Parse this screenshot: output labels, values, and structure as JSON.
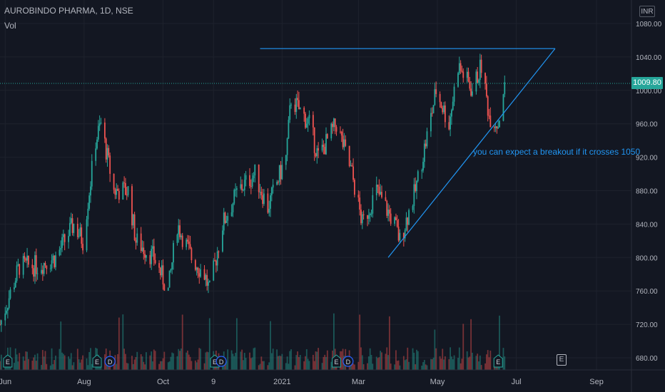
{
  "header": {
    "title": "AUROBINDO PHARMA, 1D, NSE",
    "volume_label": "Vol",
    "currency": "INR"
  },
  "current_price": {
    "value": 1009.8,
    "label": "1009.80",
    "color": "#26a69a"
  },
  "annotation": {
    "text": "you can expect a breakout if it crosses 1050",
    "color": "#2196f3"
  },
  "earnings_marker": "E",
  "colors": {
    "background": "#131722",
    "up": "#26a69a",
    "down": "#ef5350",
    "trendline": "#2196f3",
    "grid": "#1e222d",
    "text": "#b2b5be"
  },
  "chart_data": {
    "type": "candlestick",
    "y_axis": {
      "ticks": [
        680,
        720,
        760,
        800,
        840,
        880,
        920,
        960,
        1000,
        1040,
        1080
      ],
      "tick_labels": [
        "680.00",
        "720.00",
        "760.00",
        "800.00",
        "840.00",
        "880.00",
        "920.00",
        "960.00",
        "1000.00",
        "1040.00",
        "1080.00"
      ],
      "range": [
        673,
        1090
      ]
    },
    "x_axis": {
      "tick_labels": [
        "Jun",
        "Aug",
        "Oct",
        "9",
        "2021",
        "Mar",
        "May",
        "Jul",
        "Sep"
      ],
      "tick_dates": [
        "2020-06-01",
        "2020-08-01",
        "2020-10-01",
        "2020-11-09",
        "2021-01-01",
        "2021-03-01",
        "2021-05-01",
        "2021-07-01",
        "2021-09-01"
      ],
      "range": [
        "2020-05-28",
        "2021-09-28"
      ]
    },
    "series_path": [
      [
        "2020-05-28",
        720
      ],
      [
        "2020-06-12",
        790
      ],
      [
        "2020-06-26",
        790
      ],
      [
        "2020-07-10",
        800
      ],
      [
        "2020-07-24",
        840
      ],
      [
        "2020-07-31",
        820
      ],
      [
        "2020-08-05",
        880
      ],
      [
        "2020-08-10",
        940
      ],
      [
        "2020-08-14",
        960
      ],
      [
        "2020-08-24",
        880
      ],
      [
        "2020-09-04",
        880
      ],
      [
        "2020-09-10",
        820
      ],
      [
        "2020-09-24",
        800
      ],
      [
        "2020-10-05",
        760
      ],
      [
        "2020-10-12",
        840
      ],
      [
        "2020-10-23",
        800
      ],
      [
        "2020-11-02",
        780
      ],
      [
        "2020-11-06",
        760
      ],
      [
        "2020-11-16",
        840
      ],
      [
        "2020-11-28",
        880
      ],
      [
        "2020-12-11",
        900
      ],
      [
        "2020-12-21",
        860
      ],
      [
        "2021-01-04",
        920
      ],
      [
        "2021-01-08",
        990
      ],
      [
        "2021-01-22",
        960
      ],
      [
        "2021-01-29",
        920
      ],
      [
        "2021-02-12",
        960
      ],
      [
        "2021-02-24",
        900
      ],
      [
        "2021-03-04",
        840
      ],
      [
        "2021-03-15",
        880
      ],
      [
        "2021-03-29",
        840
      ],
      [
        "2021-04-02",
        820
      ],
      [
        "2021-04-14",
        880
      ],
      [
        "2021-04-25",
        960
      ],
      [
        "2021-04-30",
        1000
      ],
      [
        "2021-05-10",
        960
      ],
      [
        "2021-05-17",
        1030
      ],
      [
        "2021-05-28",
        1000
      ],
      [
        "2021-06-04",
        1030
      ],
      [
        "2021-06-10",
        970
      ],
      [
        "2021-06-17",
        960
      ],
      [
        "2021-06-22",
        1009.8
      ]
    ],
    "trendlines": [
      {
        "name": "resistance",
        "from": [
          "2020-12-15",
          1050
        ],
        "to": [
          "2021-07-31",
          1050
        ]
      },
      {
        "name": "support",
        "from": [
          "2021-03-24",
          800
        ],
        "to": [
          "2021-07-31",
          1050
        ]
      }
    ],
    "event_markers": [
      {
        "label": "E",
        "date": "2020-06-03"
      },
      {
        "label": "E",
        "date": "2020-08-11"
      },
      {
        "label": "D",
        "date": "2020-08-21"
      },
      {
        "label": "E",
        "date": "2020-11-10"
      },
      {
        "label": "D",
        "date": "2020-11-15"
      },
      {
        "label": "E",
        "date": "2021-02-12"
      },
      {
        "label": "D",
        "date": "2021-02-21"
      },
      {
        "label": "E",
        "date": "2021-06-17"
      }
    ],
    "grid": true
  }
}
